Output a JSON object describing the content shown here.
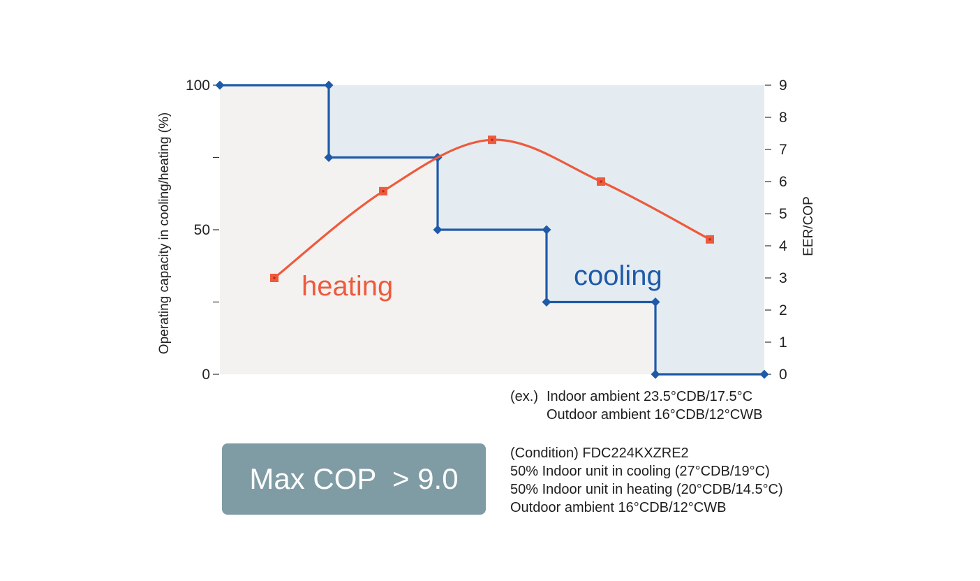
{
  "chart_data": {
    "type": "line",
    "title": "",
    "left_axis": {
      "label": "Operating capacity in cooling/heating (%)",
      "range": [
        0,
        100
      ],
      "ticks": [
        0,
        25,
        50,
        75,
        100
      ],
      "tick_labels": [
        "0",
        "",
        "50",
        "",
        "100"
      ]
    },
    "right_axis": {
      "label": "EER/COP",
      "range": [
        0,
        9
      ],
      "ticks": [
        0,
        1,
        2,
        3,
        4,
        5,
        6,
        7,
        8,
        9
      ],
      "tick_labels": [
        "0",
        "1",
        "2",
        "3",
        "4",
        "5",
        "6",
        "7",
        "8",
        "9"
      ]
    },
    "x_range": [
      0,
      5
    ],
    "series": [
      {
        "name": "cooling",
        "axis": "left",
        "style": "step",
        "color": "#1f5aa8",
        "x": [
          0,
          1,
          1,
          2,
          2,
          3,
          3,
          4,
          4,
          5
        ],
        "y": [
          100,
          100,
          75,
          75,
          50,
          50,
          25,
          25,
          0,
          0
        ]
      },
      {
        "name": "heating",
        "axis": "right",
        "style": "smooth",
        "color": "#ee5a3c",
        "x": [
          0.5,
          1.5,
          2.5,
          3.5,
          4.5
        ],
        "y": [
          3.0,
          5.7,
          7.3,
          6.0,
          4.2
        ]
      }
    ]
  },
  "example_note": {
    "prefix": "(ex.)",
    "lines": [
      "Indoor ambient 23.5°CDB/17.5°C",
      "Outdoor ambient 16°CDB/12°CWB"
    ]
  },
  "condition_note": {
    "lines": [
      "(Condition) FDC224KXZRE2",
      "50% Indoor unit in cooling (27°CDB/19°C)",
      "50% Indoor unit in heating (20°CDB/14.5°C)",
      "Outdoor ambient 16°CDB/12°CWB"
    ]
  },
  "badge": {
    "text": "Max COP  > 9.0"
  },
  "colors": {
    "cooling": "#1f5aa8",
    "heating": "#ee5a3c",
    "plot_bg": "#f3f2f1",
    "cooling_area": "#e4ecf2",
    "badge_bg": "#7f9ba4"
  }
}
